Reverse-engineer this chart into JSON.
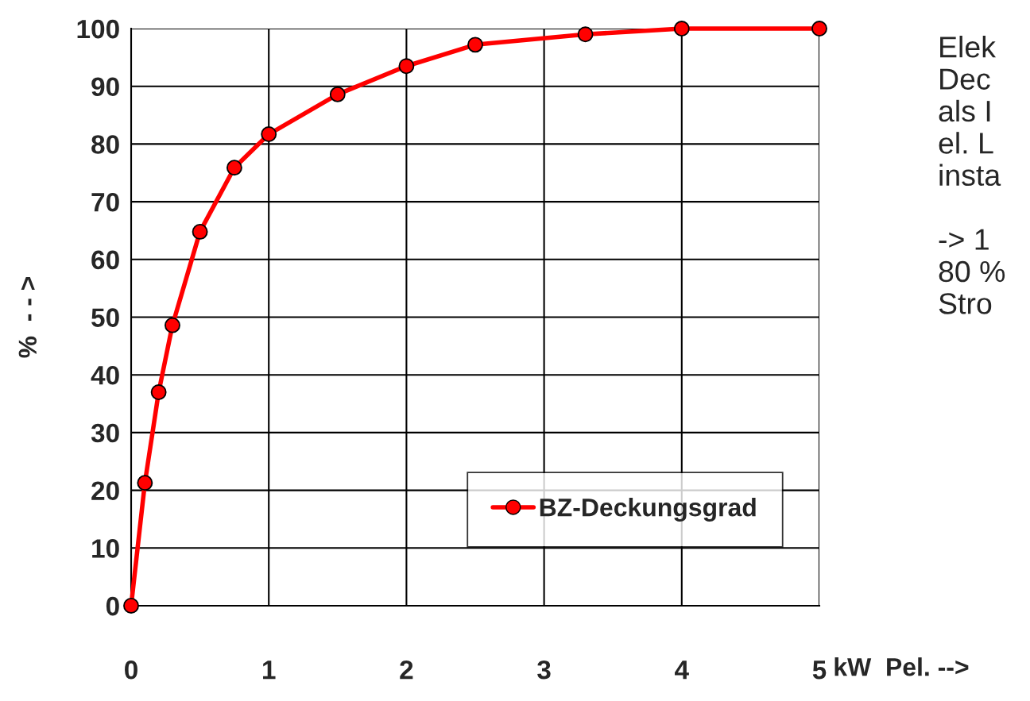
{
  "chart_data": {
    "type": "line",
    "x": [
      0,
      0.1,
      0.2,
      0.3,
      0.5,
      0.75,
      1.0,
      1.5,
      2.0,
      2.5,
      3.3,
      4.0,
      5.0
    ],
    "series": [
      {
        "name": "BZ-Deckungsgrad",
        "color": "#ff0000",
        "values": [
          0,
          21.3,
          37.0,
          48.6,
          64.8,
          75.9,
          81.7,
          88.6,
          93.5,
          97.2,
          99.0,
          100,
          100
        ]
      }
    ],
    "xlim": [
      0,
      5
    ],
    "xticks": [
      0,
      1,
      2,
      3,
      4,
      5
    ],
    "ylim": [
      0,
      100
    ],
    "yticks": [
      0,
      10,
      20,
      30,
      40,
      50,
      60,
      70,
      80,
      90,
      100
    ],
    "xlabel": "kW  Pel. -->",
    "ylabel": "%  - - >",
    "annotations": [
      "Elek\nDec\nals I\nel. L\ninsta\n\n-> 1\n80 %\nStro"
    ],
    "grid": true,
    "legend": "bottom right",
    "marker": "circle",
    "line_style": "solid"
  }
}
